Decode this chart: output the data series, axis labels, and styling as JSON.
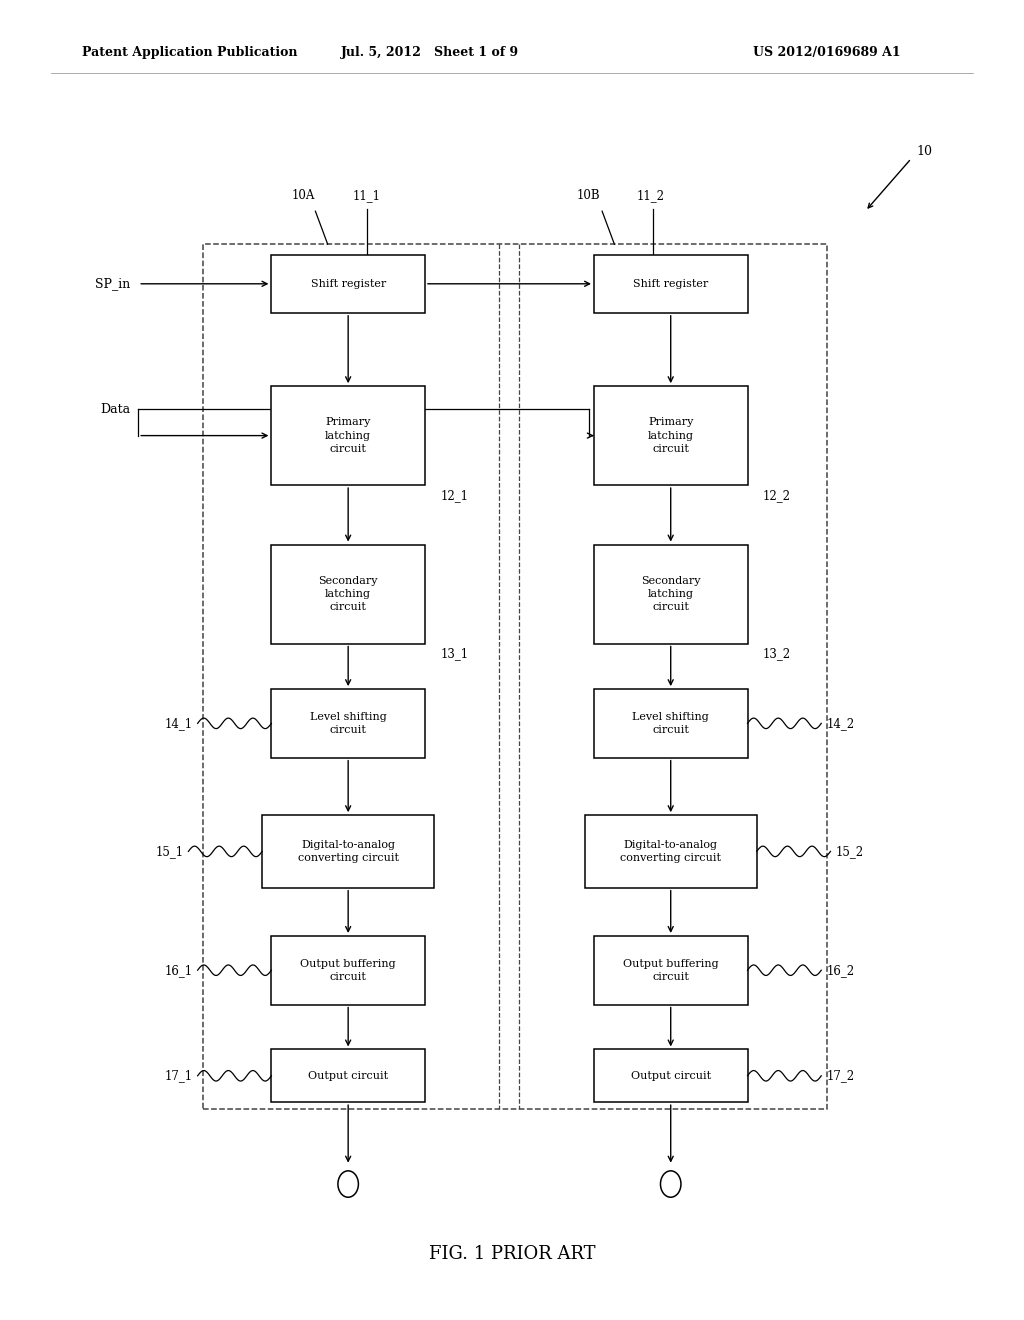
{
  "header_left": "Patent Application Publication",
  "header_mid": "Jul. 5, 2012   Sheet 1 of 9",
  "header_right": "US 2012/0169689 A1",
  "caption": "FIG. 1 PRIOR ART",
  "ref_10": "10",
  "ref_10A": "10A",
  "ref_10B": "10B",
  "ref_11_1": "11_1",
  "ref_11_2": "11_2",
  "ref_12_1": "12_1",
  "ref_12_2": "12_2",
  "ref_13_1": "13_1",
  "ref_13_2": "13_2",
  "ref_14_1": "14_1",
  "ref_14_2": "14_2",
  "ref_15_1": "15_1",
  "ref_15_2": "15_2",
  "ref_16_1": "16_1",
  "ref_16_2": "16_2",
  "ref_17_1": "17_1",
  "ref_17_2": "17_2",
  "label_SP_in": "SP_in",
  "label_Data": "Data",
  "bg_color": "#ffffff",
  "box_edge_color": "#000000",
  "text_color": "#000000"
}
